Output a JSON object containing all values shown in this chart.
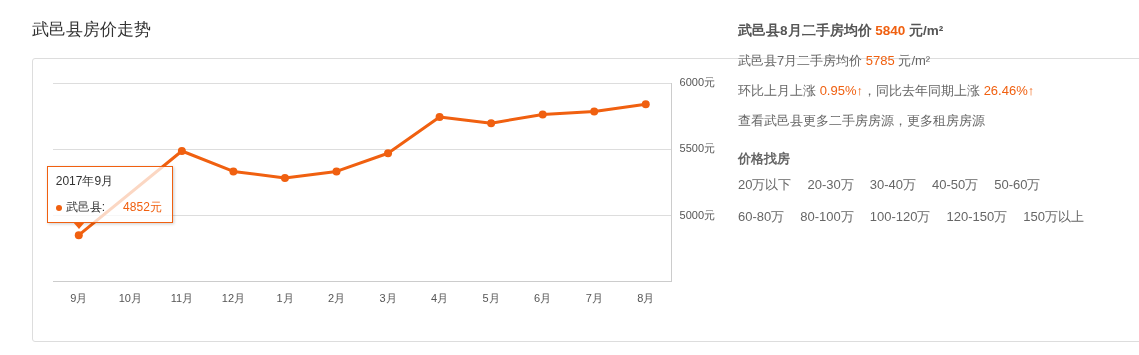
{
  "chart_data": [
    {
      "type": "line",
      "title": "武邑县房价走势",
      "categories": [
        "9月",
        "10月",
        "11月",
        "12月",
        "1月",
        "2月",
        "3月",
        "4月",
        "5月",
        "6月",
        "7月",
        "8月"
      ],
      "series": [
        {
          "color": "#f06010",
          "values": [
            4852,
            null,
            5487,
            5333,
            5283,
            5333,
            5470,
            5743,
            5697,
            5763,
            5785,
            5840
          ]
        }
      ],
      "ylim": [
        4500,
        6000
      ],
      "yticks": [
        {
          "value": 5000,
          "label": "5000元"
        },
        {
          "value": 5500,
          "label": "5500元"
        },
        {
          "value": 6000,
          "label": "6000元"
        }
      ],
      "grid": "y",
      "marker": "circle",
      "line_style": "solid",
      "legend": false,
      "annotations": [
        "2017年9月",
        "武邑县:",
        "4852元"
      ]
    },
    {
      "type": "other",
      "title": "武邑县8月二手房均价 5840 元/m²",
      "subtitle": "价格找房",
      "annotations": [
        "武邑县7月二手房均价 5785 元/m²",
        "环比上月上涨 0.95%↑，同比去年同期上涨 26.46%↑",
        "查看武邑县更多二手房房源，更多租房房源",
        "20万以下",
        "20-30万",
        "30-40万",
        "40-50万",
        "50-60万",
        "60-80万",
        "80-100万",
        "100-120万",
        "120-150万",
        "150万以上"
      ]
    }
  ]
}
